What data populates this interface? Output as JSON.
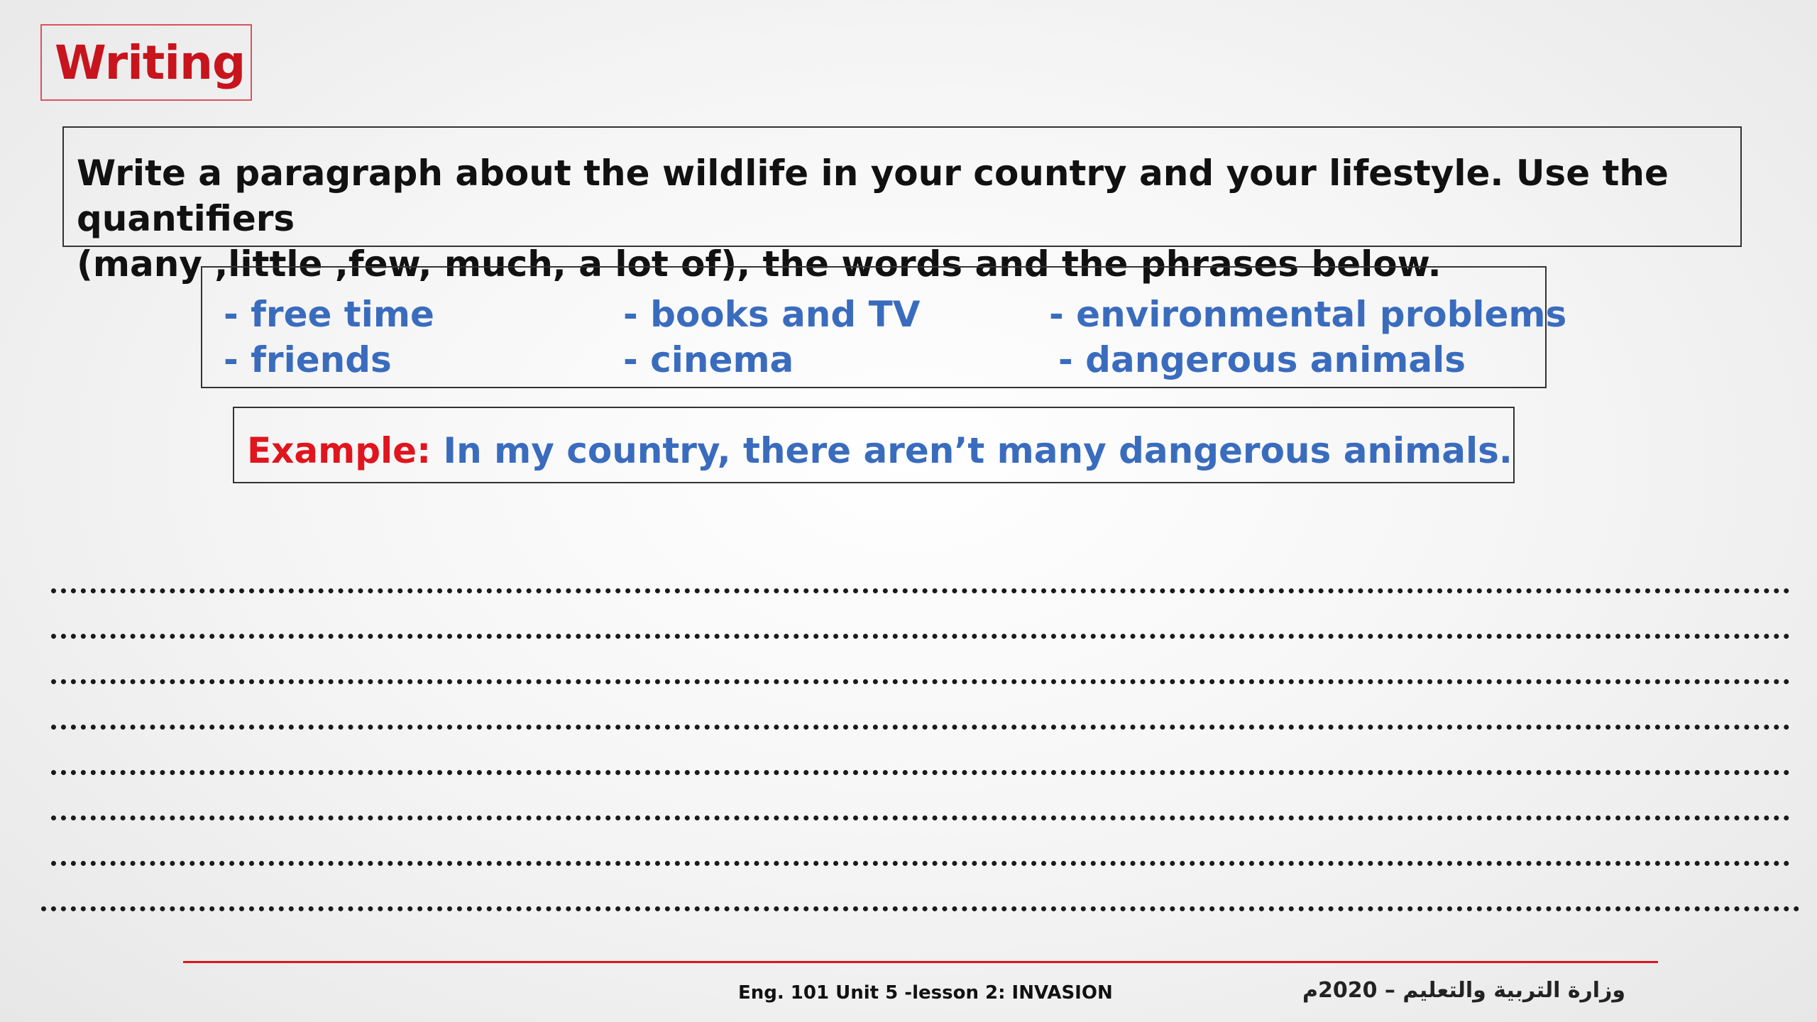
{
  "heading": "Writing",
  "instruction": {
    "line1": "Write a paragraph about the wildlife in your country and your lifestyle. Use the quantifiers",
    "line2": "(many ,little ,few, much, a lot of), the words and the phrases below."
  },
  "words": [
    "- free time",
    "- friends",
    "- books and TV",
    "- cinema",
    "- environmental problems",
    "- dangerous animals"
  ],
  "example": {
    "label": "Example:",
    "text": " In my country, there aren’t  many dangerous animals."
  },
  "writing_lines_count": 8,
  "footer": {
    "lesson": "Eng. 101 Unit 5 -lesson 2: INVASION",
    "ministry": "وزارة التربية والتعليم – 2020م"
  },
  "colors": {
    "heading": "#c8141c",
    "accent_red": "#e0151d",
    "word_blue": "#3a6cbe"
  }
}
